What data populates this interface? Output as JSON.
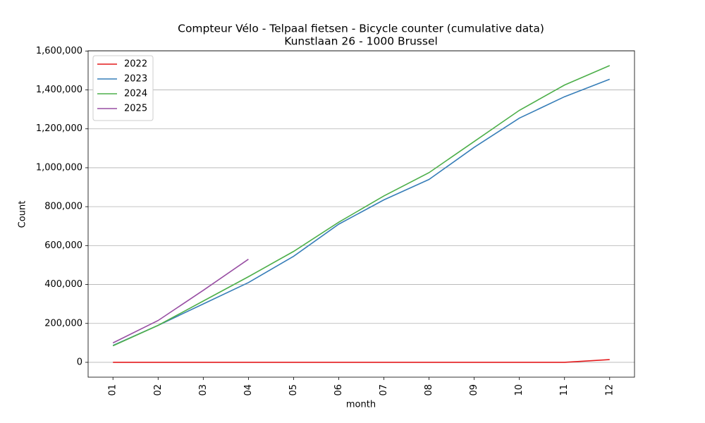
{
  "chart_data": {
    "type": "line",
    "title": "Compteur Vélo - Telpaal fietsen - Bicycle counter (cumulative data)",
    "subtitle": "Kunstlaan 26 - 1000 Brussel",
    "x_label": "month",
    "y_label": "Count",
    "categories": [
      "01",
      "02",
      "03",
      "04",
      "05",
      "06",
      "07",
      "08",
      "09",
      "10",
      "11",
      "12"
    ],
    "series": [
      {
        "name": "2022",
        "color": "#e41a1c",
        "values": [
          0,
          0,
          0,
          0,
          0,
          0,
          0,
          0,
          0,
          0,
          0,
          14000
        ]
      },
      {
        "name": "2023",
        "color": "#377eb8",
        "values": [
          87000,
          190000,
          300000,
          410000,
          545000,
          710000,
          835000,
          940000,
          1105000,
          1255000,
          1365000,
          1455000
        ]
      },
      {
        "name": "2024",
        "color": "#4daf4a",
        "values": [
          85000,
          190000,
          315000,
          440000,
          570000,
          720000,
          855000,
          975000,
          1135000,
          1295000,
          1425000,
          1525000
        ]
      },
      {
        "name": "2025",
        "color": "#984ea3",
        "values": [
          100000,
          215000,
          370000,
          530000,
          null,
          null,
          null,
          null,
          null,
          null,
          null,
          null
        ]
      }
    ],
    "ylim": [
      -76250,
      1601250
    ],
    "yticks": [
      0,
      {
        "value": 200000,
        "label": "200,000"
      },
      {
        "value": 400000,
        "label": "400,000"
      },
      {
        "value": 600000,
        "label": "600,000"
      },
      {
        "value": 800000,
        "label": "800,000"
      },
      {
        "value": 1000000,
        "label": "1,000,000"
      },
      {
        "value": 1200000,
        "label": "1,200,000"
      },
      {
        "value": 1400000,
        "label": "1,400,000"
      },
      {
        "value": 1600000,
        "label": "1,600,000"
      }
    ],
    "grid": true,
    "legend": "upper left"
  }
}
